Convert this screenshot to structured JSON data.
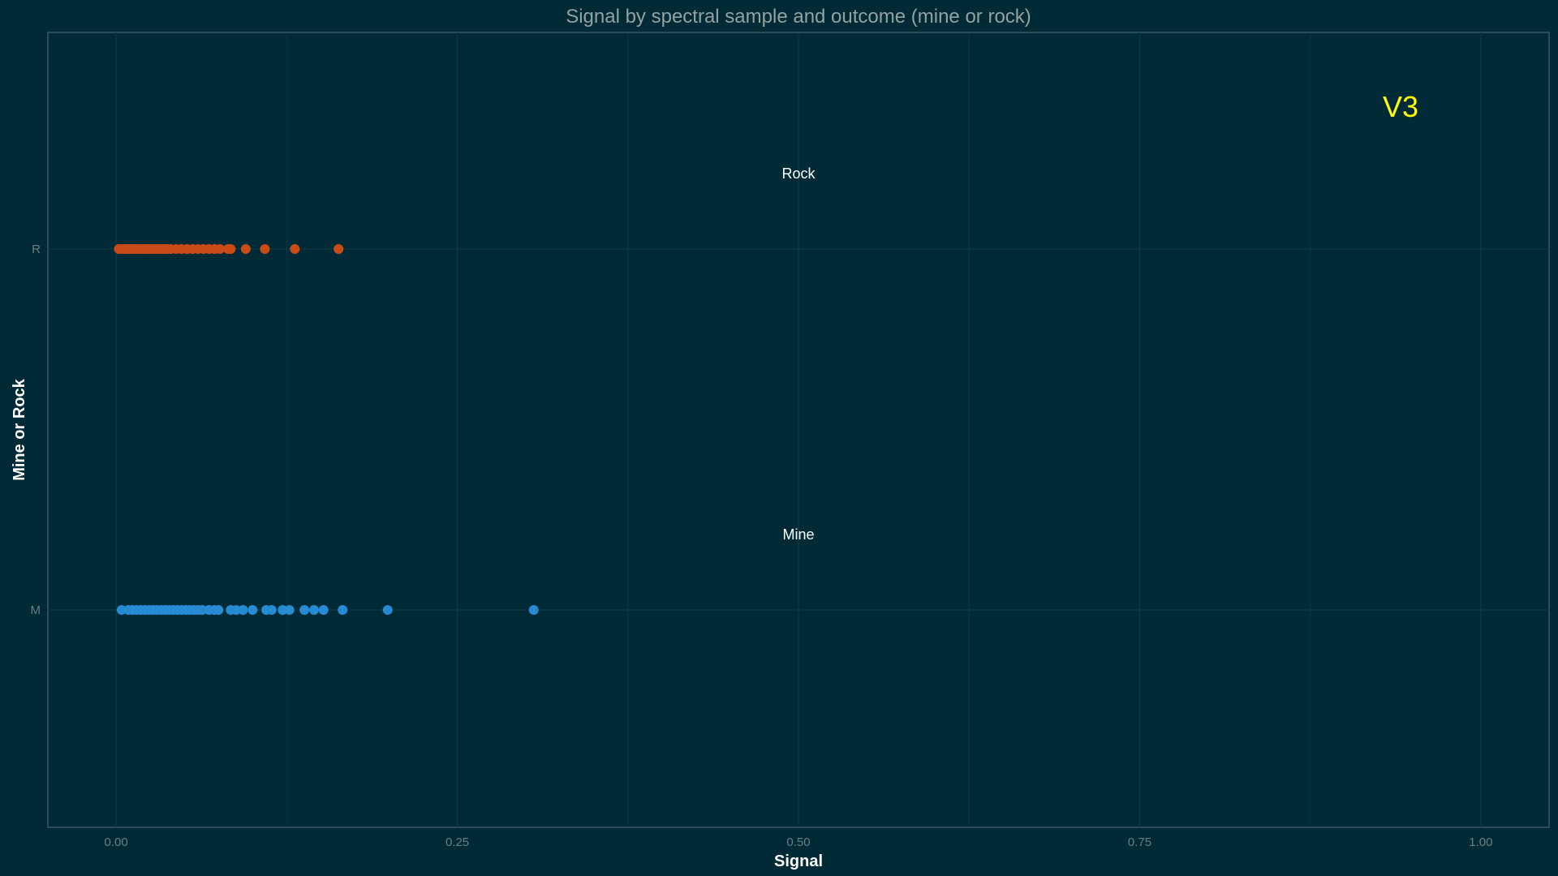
{
  "chart_data": {
    "type": "scatter",
    "title": "Signal by spectral sample and outcome (mine or rock)",
    "xlabel": "Signal",
    "ylabel": "Mine or Rock",
    "facet_label": "V3",
    "xlim": [
      -0.05,
      1.05
    ],
    "x_ticks": [
      {
        "value": 0.0,
        "label": "0.00"
      },
      {
        "value": 0.25,
        "label": "0.25"
      },
      {
        "value": 0.5,
        "label": "0.50"
      },
      {
        "value": 0.75,
        "label": "0.75"
      },
      {
        "value": 1.0,
        "label": "1.00"
      }
    ],
    "categories": [
      "M",
      "R"
    ],
    "grid": true,
    "background": "#002b36",
    "series": [
      {
        "category": "R",
        "annotation": "Rock",
        "color": "#cb4b16",
        "x": [
          0.002,
          0.004,
          0.006,
          0.008,
          0.01,
          0.012,
          0.014,
          0.016,
          0.018,
          0.02,
          0.022,
          0.024,
          0.026,
          0.028,
          0.03,
          0.032,
          0.034,
          0.036,
          0.038,
          0.04,
          0.044,
          0.048,
          0.052,
          0.056,
          0.06,
          0.064,
          0.068,
          0.072,
          0.076,
          0.082,
          0.084,
          0.095,
          0.109,
          0.131,
          0.163
        ]
      },
      {
        "category": "M",
        "annotation": "Mine",
        "color": "#268bd2",
        "x": [
          0.004,
          0.009,
          0.012,
          0.015,
          0.018,
          0.021,
          0.024,
          0.027,
          0.03,
          0.033,
          0.036,
          0.039,
          0.042,
          0.045,
          0.048,
          0.051,
          0.054,
          0.057,
          0.06,
          0.063,
          0.068,
          0.072,
          0.075,
          0.084,
          0.088,
          0.093,
          0.1,
          0.11,
          0.114,
          0.122,
          0.127,
          0.138,
          0.145,
          0.152,
          0.166,
          0.199,
          0.306
        ]
      }
    ],
    "facet_color": "#ffff00"
  }
}
